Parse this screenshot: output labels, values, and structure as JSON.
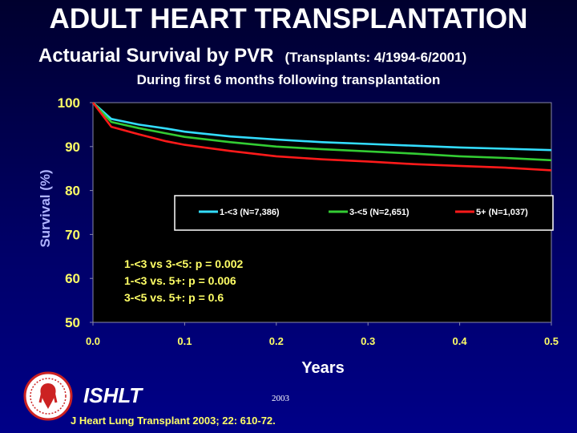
{
  "header": {
    "title": "ADULT HEART TRANSPLANTATION",
    "subtitle": "Actuarial Survival by PVR",
    "subtitle_paren": "(Transplants: 4/1994-6/2001)",
    "caption": "During first 6 months following transplantation"
  },
  "chart_data": {
    "type": "line",
    "title": "Actuarial Survival by PVR",
    "xlabel": "Years",
    "ylabel": "Survival (%)",
    "xlim": [
      0,
      0.5
    ],
    "ylim": [
      50,
      100
    ],
    "x_ticks": [
      "0.0",
      "0.1",
      "0.2",
      "0.3",
      "0.4",
      "0.5"
    ],
    "y_ticks": [
      "50",
      "60",
      "70",
      "80",
      "90",
      "100"
    ],
    "grid": false,
    "legend_position": "center-right",
    "series": [
      {
        "name": "1-<3 (N=7,386)",
        "color": "#33ddff",
        "x": [
          0,
          0.02,
          0.05,
          0.08,
          0.1,
          0.15,
          0.2,
          0.25,
          0.3,
          0.35,
          0.4,
          0.45,
          0.5
        ],
        "y": [
          100,
          96.3,
          95.0,
          94.1,
          93.4,
          92.3,
          91.6,
          91.0,
          90.6,
          90.2,
          89.8,
          89.5,
          89.2
        ]
      },
      {
        "name": "3-<5 (N=2,651)",
        "color": "#33cc33",
        "x": [
          0,
          0.02,
          0.05,
          0.08,
          0.1,
          0.15,
          0.2,
          0.25,
          0.3,
          0.35,
          0.4,
          0.45,
          0.5
        ],
        "y": [
          100,
          95.6,
          94.2,
          93.0,
          92.2,
          91.0,
          90.0,
          89.4,
          88.9,
          88.4,
          87.8,
          87.4,
          86.9
        ]
      },
      {
        "name": "5+ (N=1,037)",
        "color": "#ff1a1a",
        "x": [
          0,
          0.02,
          0.05,
          0.08,
          0.1,
          0.15,
          0.2,
          0.25,
          0.3,
          0.35,
          0.4,
          0.45,
          0.5
        ],
        "y": [
          100,
          94.5,
          92.8,
          91.2,
          90.4,
          89.0,
          87.8,
          87.1,
          86.6,
          86.0,
          85.6,
          85.2,
          84.6
        ]
      }
    ],
    "annotations": [
      "1-<3 vs 3-<5:  p = 0.002",
      "1-<3 vs. 5+: p = 0.006",
      "3-<5 vs. 5+: p = 0.6"
    ]
  },
  "footer": {
    "org": "ISHLT",
    "year": "2003",
    "citation": "J Heart Lung Transplant 2003; 22: 610-72."
  },
  "colors": {
    "axis_text": "#ffff66",
    "annotation": "#ffff66",
    "plot_background": "#000000",
    "plot_border": "#8888aa",
    "legend_background": "#000000",
    "legend_border": "#ffffff"
  }
}
